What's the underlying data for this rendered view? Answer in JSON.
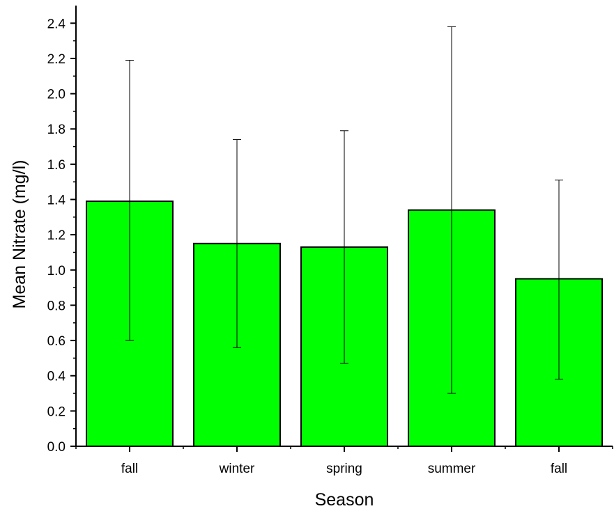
{
  "chart_data": {
    "type": "bar",
    "title": "",
    "xlabel": "Season",
    "ylabel": "Mean Nitrate (mg/l)",
    "categories": [
      "fall",
      "winter",
      "spring",
      "summer",
      "fall"
    ],
    "values": [
      1.39,
      1.15,
      1.13,
      1.34,
      0.95
    ],
    "error_upper": [
      2.19,
      1.74,
      1.79,
      2.38,
      1.51
    ],
    "error_lower": [
      0.6,
      0.56,
      0.47,
      0.3,
      0.38
    ],
    "ylim": [
      0,
      2.5
    ],
    "yticks": [
      "0.0",
      "0.2",
      "0.4",
      "0.6",
      "0.8",
      "1.0",
      "1.2",
      "1.4",
      "1.6",
      "1.8",
      "2.0",
      "2.2",
      "2.4"
    ],
    "bar_color": "#00ff00",
    "edge_color": "#000000",
    "grid": false,
    "legend": "none"
  }
}
